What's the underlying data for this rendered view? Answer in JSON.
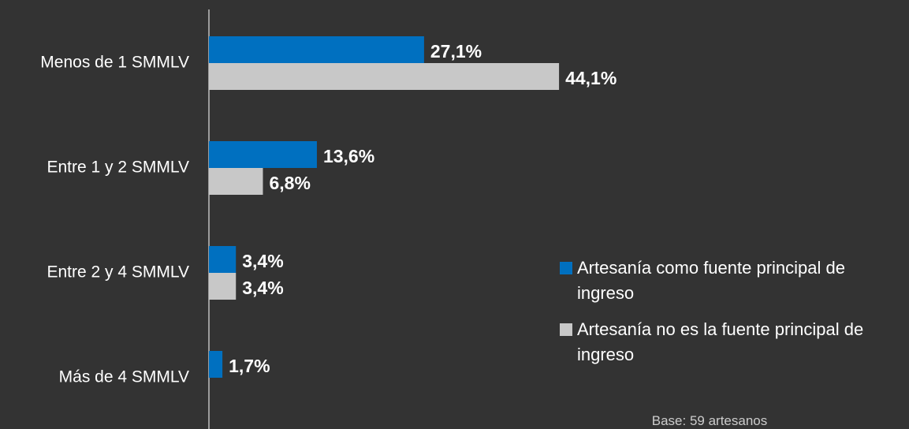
{
  "chart_data": {
    "type": "bar",
    "orientation": "horizontal",
    "categories": [
      "Menos de 1 SMMLV",
      "Entre 1 y 2 SMMLV",
      "Entre 2 y 4 SMMLV",
      "Más de 4 SMMLV"
    ],
    "series": [
      {
        "name": "Artesanía como fuente principal de ingreso",
        "color": "#0070c0",
        "values": [
          27.1,
          13.6,
          3.4,
          1.7
        ],
        "value_labels": [
          "27,1%",
          "13,6%",
          "3,4%",
          "1,7%"
        ]
      },
      {
        "name": "Artesanía no es la fuente principal de ingreso",
        "color": "#c8c8c8",
        "values": [
          44.1,
          6.8,
          3.4,
          null
        ],
        "value_labels": [
          "44,1%",
          "6,8%",
          "3,4%",
          null
        ]
      }
    ],
    "legend": "right",
    "annotation": "Base: 59 artesanos"
  }
}
